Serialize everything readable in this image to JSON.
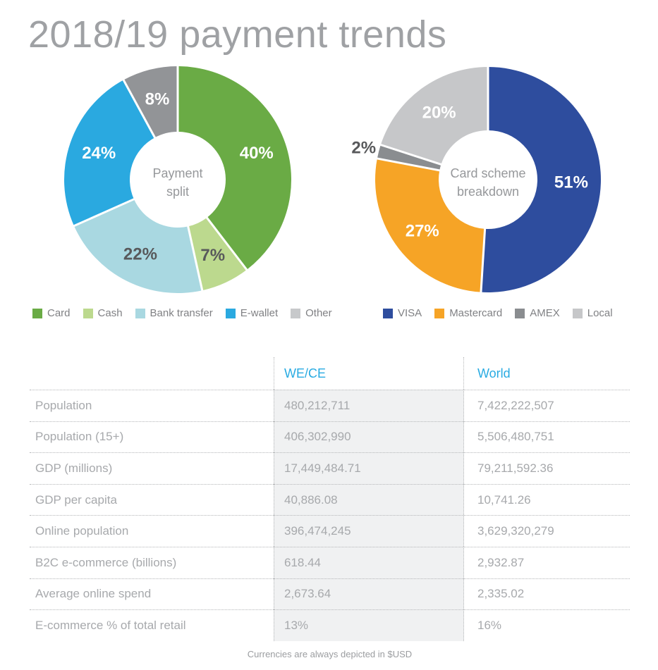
{
  "header": {
    "title": "2018/19 payment trends"
  },
  "chart_data": [
    {
      "type": "donut",
      "title": "Payment split",
      "center_label": [
        "Payment",
        "split"
      ],
      "start_angle_deg": 0,
      "direction": "clockwise",
      "legend_position": "bottom",
      "slices": [
        {
          "label": "Card",
          "value": 40,
          "display": "40%",
          "color": "#6aab45",
          "label_color": "#ffffff"
        },
        {
          "label": "Cash",
          "value": 7,
          "display": "7%",
          "color": "#bcd98e",
          "label_color": "#58595b"
        },
        {
          "label": "Bank transfer",
          "value": 22,
          "display": "22%",
          "color": "#a9d8e1",
          "label_color": "#58595b"
        },
        {
          "label": "E-wallet",
          "value": 24,
          "display": "24%",
          "color": "#2aa9e0",
          "label_color": "#ffffff"
        },
        {
          "label": "Other",
          "value": 8,
          "display": "8%",
          "color": "#929497",
          "label_color": "#ffffff",
          "legend_color": "#c7c9cb"
        }
      ]
    },
    {
      "type": "donut",
      "title": "Card scheme breakdown",
      "center_label": [
        "Card scheme",
        "breakdown"
      ],
      "start_angle_deg": 0,
      "direction": "clockwise",
      "legend_position": "bottom",
      "slices": [
        {
          "label": "VISA",
          "value": 51,
          "display": "51%",
          "color": "#2e4d9e",
          "label_color": "#ffffff"
        },
        {
          "label": "Mastercard",
          "value": 27,
          "display": "27%",
          "color": "#f6a426",
          "label_color": "#ffffff"
        },
        {
          "label": "AMEX",
          "value": 2,
          "display": "2%",
          "color": "#8a8d90",
          "label_color": "#58595b",
          "label_outside": true
        },
        {
          "label": "Local",
          "value": 20,
          "display": "20%",
          "color": "#c6c7c9",
          "label_color": "#ffffff"
        }
      ]
    }
  ],
  "table": {
    "col2_header": "WE/CE",
    "col3_header": "World",
    "rows": [
      {
        "label": "Population",
        "wece": "480,212,711",
        "world": "7,422,222,507"
      },
      {
        "label": "Population (15+)",
        "wece": "406,302,990",
        "world": "5,506,480,751"
      },
      {
        "label": "GDP (millions)",
        "wece": "17,449,484.71",
        "world": "79,211,592.36"
      },
      {
        "label": "GDP per capita",
        "wece": "40,886.08",
        "world": "10,741.26"
      },
      {
        "label": "Online population",
        "wece": "396,474,245",
        "world": "3,629,320,279"
      },
      {
        "label": "B2C e-commerce (billions)",
        "wece": "618.44",
        "world": "2,932.87"
      },
      {
        "label": "Average online spend",
        "wece": "2,673.64",
        "world": "2,335.02"
      },
      {
        "label": "E-commerce % of total retail",
        "wece": "13%",
        "world": "16%"
      }
    ]
  },
  "footer": {
    "note": "Currencies are always depicted in $USD"
  },
  "colors": {
    "title_text": "#9fa1a4",
    "table_text": "#a7a9ac",
    "table_header_accent": "#29abe2",
    "dotted_border": "#b4b6b8",
    "wece_column_bg": "#f0f1f2",
    "center_label_text": "#96989b"
  }
}
